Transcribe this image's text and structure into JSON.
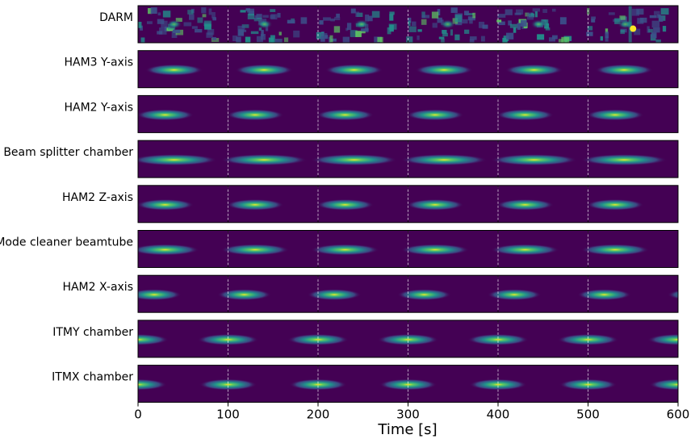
{
  "chart_data": {
    "type": "heatmap",
    "title": "",
    "xlabel": "Time [s]",
    "ylabel": "",
    "xlim": [
      0,
      600
    ],
    "xticks": [
      0,
      100,
      200,
      300,
      400,
      500,
      600
    ],
    "grid": "vertical dashed at x ticks",
    "colormap": "viridis",
    "colors": {
      "background": "#440154",
      "low": "#3b528b",
      "mid": "#21918c",
      "high": "#5ec962",
      "peak": "#fde725"
    },
    "panels": [
      {
        "name": "DARM",
        "pattern": "noise",
        "burst_centers_s": [
          40,
          140,
          240,
          340,
          440,
          540
        ]
      },
      {
        "name": "HAM3 Y-axis",
        "pattern": "bursts",
        "burst_centers_s": [
          40,
          140,
          240,
          340,
          440,
          540
        ],
        "burst_halfwidth_s": 32
      },
      {
        "name": "HAM2 Y-axis",
        "pattern": "bursts",
        "burst_centers_s": [
          30,
          130,
          230,
          330,
          430,
          530
        ],
        "burst_halfwidth_s": 32
      },
      {
        "name": "Beam splitter chamber",
        "pattern": "bursts",
        "burst_centers_s": [
          40,
          140,
          240,
          340,
          440,
          540
        ],
        "burst_halfwidth_s": 48
      },
      {
        "name": "HAM2 Z-axis",
        "pattern": "bursts",
        "burst_centers_s": [
          30,
          130,
          230,
          330,
          430,
          530
        ],
        "burst_halfwidth_s": 32
      },
      {
        "name": "Mode cleaner beamtube",
        "pattern": "bursts",
        "burst_centers_s": [
          30,
          130,
          230,
          330,
          430,
          530
        ],
        "burst_halfwidth_s": 38
      },
      {
        "name": "HAM2 X-axis",
        "pattern": "bursts",
        "burst_centers_s": [
          18,
          118,
          218,
          318,
          418,
          518,
          618
        ],
        "burst_halfwidth_s": 30
      },
      {
        "name": "ITMY chamber",
        "pattern": "bursts",
        "burst_centers_s": [
          0,
          100,
          200,
          300,
          400,
          500,
          600
        ],
        "burst_halfwidth_s": 34
      },
      {
        "name": "ITMX chamber",
        "pattern": "bursts",
        "burst_centers_s": [
          0,
          100,
          200,
          300,
          400,
          500,
          600
        ],
        "burst_halfwidth_s": 32
      }
    ]
  }
}
